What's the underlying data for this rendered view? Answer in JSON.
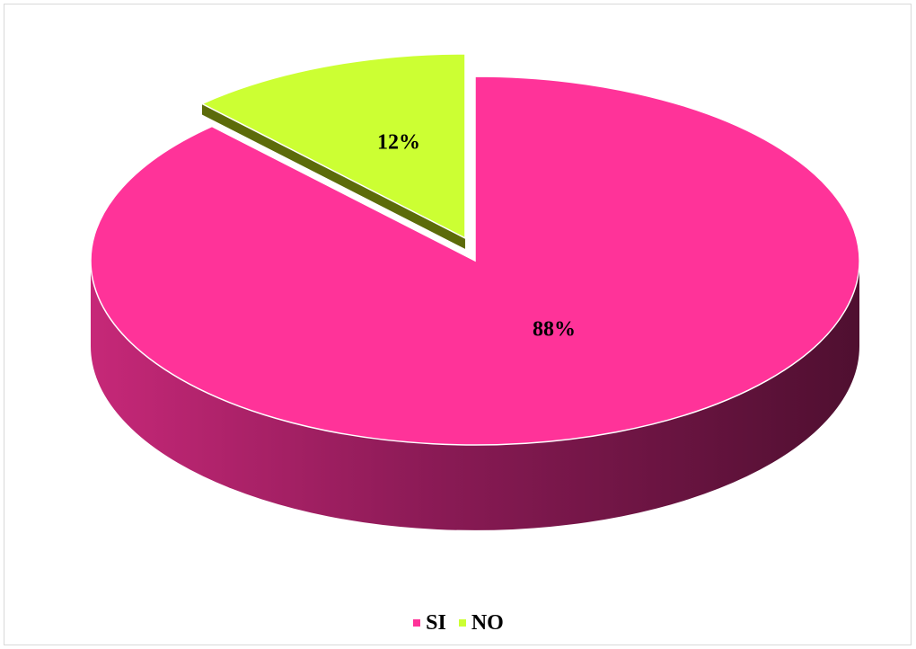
{
  "chart_data": {
    "type": "pie",
    "title": "",
    "categories": [
      "SI",
      "NO"
    ],
    "values": [
      88,
      12
    ],
    "data_labels": [
      "88%",
      "12%"
    ],
    "colors": [
      "#FF3399",
      "#CCFF33"
    ],
    "exploded": [
      false,
      true
    ],
    "three_d": true,
    "legend": "bottom",
    "grid": false
  }
}
